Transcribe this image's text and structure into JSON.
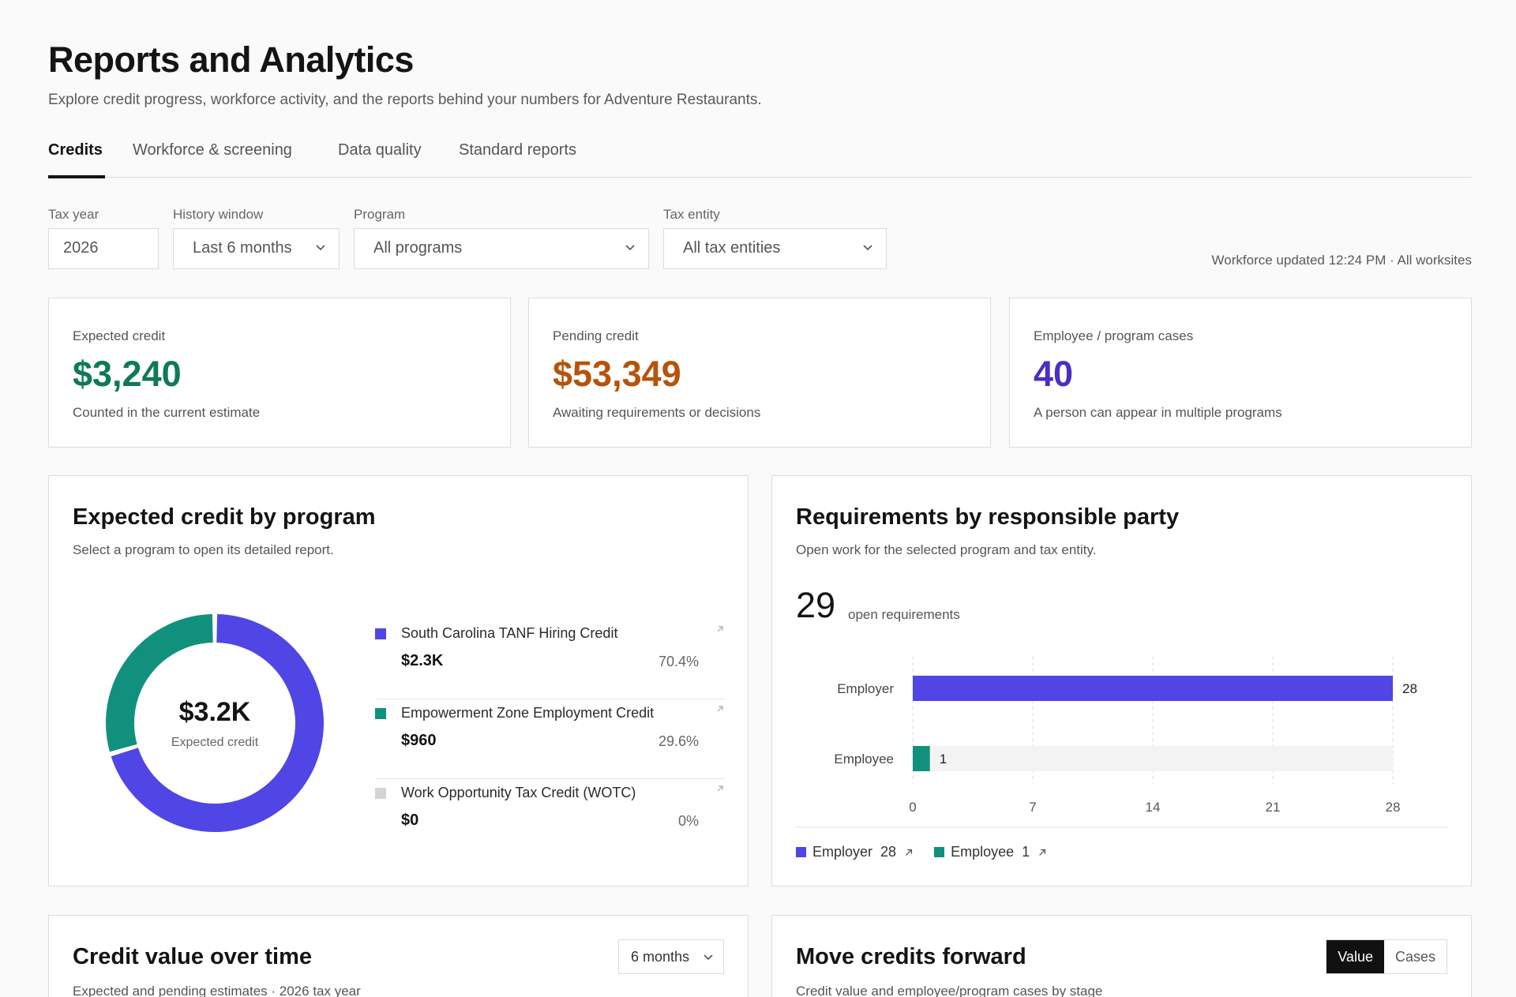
{
  "header": {
    "title": "Reports and Analytics",
    "subtitle": "Explore credit progress, workforce activity, and the reports behind your numbers for Adventure Restaurants."
  },
  "tabs": [
    {
      "label": "Credits",
      "active": true
    },
    {
      "label": "Workforce & screening",
      "active": false
    },
    {
      "label": "Data quality",
      "active": false
    },
    {
      "label": "Standard reports",
      "active": false
    }
  ],
  "filters": {
    "tax_year": {
      "label": "Tax year",
      "value": "2026"
    },
    "history": {
      "label": "History window",
      "value": "Last 6 months"
    },
    "program": {
      "label": "Program",
      "value": "All programs"
    },
    "entity": {
      "label": "Tax entity",
      "value": "All tax entities"
    }
  },
  "updated_text": "Workforce updated 12:24 PM · All worksites",
  "kpis": [
    {
      "label": "Expected credit",
      "value": "$3,240",
      "note": "Counted in the current estimate",
      "color": "#0f7a55"
    },
    {
      "label": "Pending credit",
      "value": "$53,349",
      "note": "Awaiting requirements or decisions",
      "color": "#b75309"
    },
    {
      "label": "Employee / program cases",
      "value": "40",
      "note": "A person can appear in multiple programs",
      "color": "#4b2fc2"
    }
  ],
  "program_card": {
    "title": "Expected credit by program",
    "subtitle": "Select a program to open its detailed report.",
    "center_value": "$3.2K",
    "center_label": "Expected credit",
    "items": [
      {
        "name": "South Carolina TANF Hiring Credit",
        "amount": "$2.3K",
        "pct": "70.4%",
        "color": "#4f46e5",
        "fraction": 0.704
      },
      {
        "name": "Empowerment Zone Employment Credit",
        "amount": "$960",
        "pct": "29.6%",
        "color": "#12907e",
        "fraction": 0.296
      },
      {
        "name": "Work Opportunity Tax Credit (WOTC)",
        "amount": "$0",
        "pct": "0%",
        "color": "#d4d4d4",
        "fraction": 0
      }
    ]
  },
  "requirements_card": {
    "title": "Requirements by responsible party",
    "subtitle": "Open work for the selected program and tax entity.",
    "count": "29",
    "count_label": "open requirements",
    "legend": [
      {
        "name": "Employer",
        "value": "28",
        "color": "#4f46e5"
      },
      {
        "name": "Employee",
        "value": "1",
        "color": "#12907e"
      }
    ]
  },
  "chart_data": {
    "type": "bar",
    "orientation": "horizontal",
    "categories": [
      "Employer",
      "Employee"
    ],
    "values": [
      28,
      1
    ],
    "colors": [
      "#4f46e5",
      "#12907e"
    ],
    "xlim": [
      0,
      28
    ],
    "xticks": [
      "0",
      "7",
      "14",
      "21",
      "28"
    ],
    "data_labels": [
      "28",
      "1"
    ],
    "grid": true
  },
  "credit_time_card": {
    "title": "Credit value over time",
    "subtitle": "Expected and pending estimates · 2026 tax year",
    "range": "6 months"
  },
  "move_card": {
    "title": "Move credits forward",
    "subtitle": "Credit value and employee/program cases by stage",
    "toggle_on": "Value",
    "toggle_off": "Cases"
  }
}
